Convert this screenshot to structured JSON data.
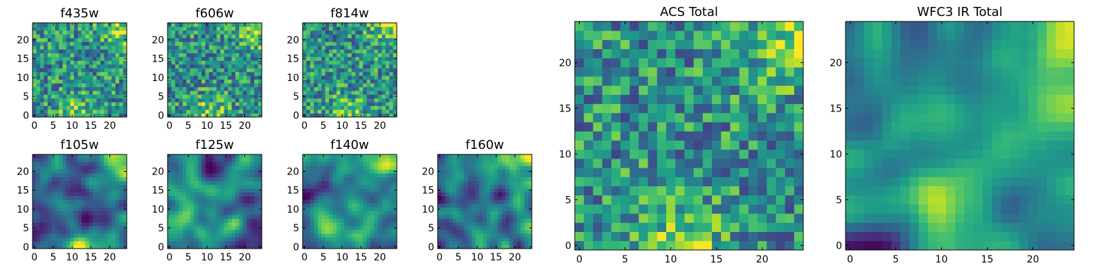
{
  "chart_data": [
    {
      "type": "heatmap",
      "title": "f435w",
      "grid_size": 25,
      "xticks": [
        0,
        5,
        10,
        15,
        20
      ],
      "yticks": [
        0,
        5,
        10,
        15,
        20
      ],
      "colormap": "viridis",
      "value_range": [
        0,
        1
      ],
      "pattern": "noise",
      "seed": 11
    },
    {
      "type": "heatmap",
      "title": "f606w",
      "grid_size": 25,
      "xticks": [
        0,
        5,
        10,
        15,
        20
      ],
      "yticks": [
        0,
        5,
        10,
        15,
        20
      ],
      "colormap": "viridis",
      "value_range": [
        0,
        1
      ],
      "pattern": "noise",
      "seed": 23
    },
    {
      "type": "heatmap",
      "title": "f814w",
      "grid_size": 25,
      "xticks": [
        0,
        5,
        10,
        15,
        20
      ],
      "yticks": [
        0,
        5,
        10,
        15,
        20
      ],
      "colormap": "viridis",
      "value_range": [
        0,
        1
      ],
      "pattern": "noise",
      "seed": 37
    },
    {
      "type": "heatmap",
      "title": "f105w",
      "grid_size": 25,
      "xticks": [
        0,
        5,
        10,
        15,
        20
      ],
      "yticks": [
        0,
        5,
        10,
        15,
        20
      ],
      "colormap": "viridis",
      "value_range": [
        0,
        1
      ],
      "pattern": "smooth",
      "seed": 41
    },
    {
      "type": "heatmap",
      "title": "f125w",
      "grid_size": 25,
      "xticks": [
        0,
        5,
        10,
        15,
        20
      ],
      "yticks": [
        0,
        5,
        10,
        15,
        20
      ],
      "colormap": "viridis",
      "value_range": [
        0,
        1
      ],
      "pattern": "smooth",
      "seed": 53
    },
    {
      "type": "heatmap",
      "title": "f140w",
      "grid_size": 25,
      "xticks": [
        0,
        5,
        10,
        15,
        20
      ],
      "yticks": [
        0,
        5,
        10,
        15,
        20
      ],
      "colormap": "viridis",
      "value_range": [
        0,
        1
      ],
      "pattern": "smooth",
      "seed": 67
    },
    {
      "type": "heatmap",
      "title": "f160w",
      "grid_size": 25,
      "xticks": [
        0,
        5,
        10,
        15,
        20
      ],
      "yticks": [
        0,
        5,
        10,
        15,
        20
      ],
      "colormap": "viridis",
      "value_range": [
        0,
        1
      ],
      "pattern": "smooth",
      "seed": 79
    },
    {
      "type": "heatmap",
      "title": "ACS Total",
      "grid_size": 25,
      "xticks": [
        0,
        5,
        10,
        15,
        20
      ],
      "yticks": [
        0,
        5,
        10,
        15,
        20
      ],
      "colormap": "viridis",
      "value_range": [
        0,
        1
      ],
      "pattern": "noise",
      "seed": 83
    },
    {
      "type": "heatmap",
      "title": "WFC3 IR Total",
      "grid_size": 25,
      "xticks": [
        0,
        5,
        10,
        15,
        20
      ],
      "yticks": [
        0,
        5,
        10,
        15,
        20
      ],
      "colormap": "viridis",
      "value_range": [
        0,
        1
      ],
      "pattern": "smooth",
      "seed": 97
    }
  ]
}
